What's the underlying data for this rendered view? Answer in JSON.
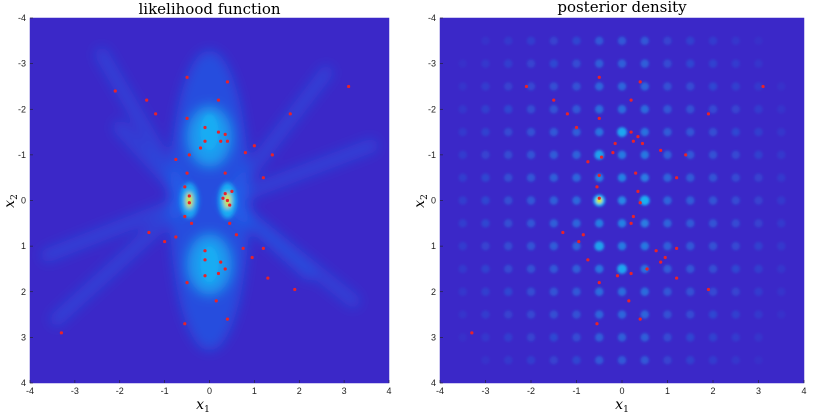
{
  "chart_data": [
    {
      "type": "heatmap",
      "title": "likelihood function",
      "xlabel": "x",
      "xlabel_sub": "1",
      "ylabel": "x",
      "ylabel_sub": "2",
      "xlim": [
        -4,
        4
      ],
      "ylim": [
        -4,
        4
      ],
      "y_reversed": true,
      "xticks": [
        -4,
        -3,
        -2,
        -1,
        0,
        1,
        2,
        3,
        4
      ],
      "yticks": [
        -4,
        -3,
        -2,
        -1,
        0,
        1,
        2,
        3,
        4
      ],
      "colors": {
        "background": "#3b28c8",
        "mid": "#1a6cf0",
        "high": "#19b8f5",
        "peak": "#d7e81e"
      },
      "hotspots": [
        {
          "x": -0.45,
          "y": 0.0,
          "level": 0.9
        },
        {
          "x": 0.4,
          "y": 0.0,
          "level": 1.0
        },
        {
          "x": 0.0,
          "y": -1.5,
          "level": 0.6
        },
        {
          "x": 0.0,
          "y": 1.4,
          "level": 0.6
        }
      ],
      "samples": [
        [
          -2.1,
          -2.4
        ],
        [
          -1.4,
          -2.2
        ],
        [
          -1.2,
          -1.9
        ],
        [
          -0.5,
          -2.7
        ],
        [
          0.4,
          -2.6
        ],
        [
          0.2,
          -2.2
        ],
        [
          -0.5,
          -1.8
        ],
        [
          1.8,
          -1.9
        ],
        [
          3.1,
          -2.5
        ],
        [
          -0.1,
          -1.6
        ],
        [
          0.2,
          -1.5
        ],
        [
          0.35,
          -1.45
        ],
        [
          0.4,
          -1.3
        ],
        [
          0.25,
          -1.3
        ],
        [
          -0.1,
          -1.3
        ],
        [
          -0.2,
          -1.15
        ],
        [
          -0.45,
          -1.0
        ],
        [
          -0.75,
          -0.9
        ],
        [
          -0.5,
          -0.6
        ],
        [
          0.35,
          -0.6
        ],
        [
          0.8,
          -1.05
        ],
        [
          1.0,
          -1.2
        ],
        [
          1.4,
          -1.0
        ],
        [
          1.2,
          -0.5
        ],
        [
          -0.55,
          -0.3
        ],
        [
          -0.45,
          -0.1
        ],
        [
          -0.45,
          0.05
        ],
        [
          0.35,
          -0.15
        ],
        [
          0.4,
          0.0
        ],
        [
          0.45,
          0.1
        ],
        [
          0.3,
          -0.05
        ],
        [
          0.5,
          -0.2
        ],
        [
          -0.55,
          0.35
        ],
        [
          -0.4,
          0.5
        ],
        [
          -0.75,
          0.8
        ],
        [
          -1.0,
          0.9
        ],
        [
          -1.35,
          0.7
        ],
        [
          0.45,
          0.5
        ],
        [
          0.6,
          0.75
        ],
        [
          0.75,
          1.05
        ],
        [
          0.95,
          1.25
        ],
        [
          1.2,
          1.05
        ],
        [
          -0.1,
          1.1
        ],
        [
          -0.1,
          1.3
        ],
        [
          0.25,
          1.35
        ],
        [
          0.35,
          1.5
        ],
        [
          0.2,
          1.6
        ],
        [
          -0.1,
          1.65
        ],
        [
          -0.5,
          1.8
        ],
        [
          1.3,
          1.7
        ],
        [
          1.9,
          1.95
        ],
        [
          0.15,
          2.2
        ],
        [
          0.4,
          2.6
        ],
        [
          -0.55,
          2.7
        ],
        [
          -3.3,
          2.9
        ]
      ]
    },
    {
      "type": "heatmap",
      "title": "posterior density",
      "xlabel": "x",
      "xlabel_sub": "1",
      "ylabel": "x",
      "ylabel_sub": "2",
      "xlim": [
        -4,
        4
      ],
      "ylim": [
        -4,
        4
      ],
      "y_reversed": true,
      "xticks": [
        -4,
        -3,
        -2,
        -1,
        0,
        1,
        2,
        3,
        4
      ],
      "yticks": [
        -4,
        -3,
        -2,
        -1,
        0,
        1,
        2,
        3,
        4
      ],
      "colors": {
        "background": "#3b28c8",
        "mid": "#1a6cf0",
        "high": "#19b8f5",
        "peak": "#d7e81e"
      },
      "grid_spacing": 0.5,
      "peak": {
        "x": -0.5,
        "y": 0.0,
        "level": 1.0
      },
      "secondary_peaks": [
        {
          "x": 0.5,
          "y": 0.0,
          "level": 0.55
        },
        {
          "x": 0.0,
          "y": -1.5,
          "level": 0.45
        },
        {
          "x": 0.0,
          "y": 1.5,
          "level": 0.45
        },
        {
          "x": -0.5,
          "y": -1.0,
          "level": 0.35
        },
        {
          "x": -0.5,
          "y": 1.0,
          "level": 0.35
        }
      ],
      "samples": [
        [
          -2.1,
          -2.5
        ],
        [
          -1.5,
          -2.2
        ],
        [
          -1.2,
          -1.9
        ],
        [
          -0.5,
          -2.7
        ],
        [
          0.4,
          -2.6
        ],
        [
          0.2,
          -2.2
        ],
        [
          -0.5,
          -1.8
        ],
        [
          1.9,
          -1.9
        ],
        [
          3.1,
          -2.5
        ],
        [
          -1.0,
          -1.6
        ],
        [
          0.2,
          -1.5
        ],
        [
          0.35,
          -1.4
        ],
        [
          0.45,
          -1.25
        ],
        [
          0.25,
          -1.3
        ],
        [
          -0.15,
          -1.25
        ],
        [
          -0.2,
          -1.05
        ],
        [
          -0.45,
          -0.95
        ],
        [
          -0.75,
          -0.85
        ],
        [
          -0.5,
          -0.55
        ],
        [
          0.3,
          -0.6
        ],
        [
          0.85,
          -1.1
        ],
        [
          1.4,
          -1.0
        ],
        [
          1.2,
          -0.5
        ],
        [
          -0.55,
          -0.3
        ],
        [
          -0.5,
          -0.05
        ],
        [
          0.35,
          -0.2
        ],
        [
          0.4,
          0.05
        ],
        [
          0.25,
          0.35
        ],
        [
          0.2,
          0.5
        ],
        [
          -0.85,
          0.75
        ],
        [
          -1.3,
          0.7
        ],
        [
          -0.95,
          0.9
        ],
        [
          0.75,
          1.1
        ],
        [
          0.95,
          1.25
        ],
        [
          1.2,
          1.05
        ],
        [
          0.85,
          1.35
        ],
        [
          0.55,
          1.5
        ],
        [
          0.2,
          1.6
        ],
        [
          -0.1,
          1.65
        ],
        [
          -0.5,
          1.8
        ],
        [
          1.2,
          1.7
        ],
        [
          1.9,
          1.95
        ],
        [
          0.15,
          2.2
        ],
        [
          0.4,
          2.6
        ],
        [
          -0.55,
          2.7
        ],
        [
          -3.3,
          2.9
        ],
        [
          -0.75,
          1.3
        ]
      ]
    }
  ]
}
